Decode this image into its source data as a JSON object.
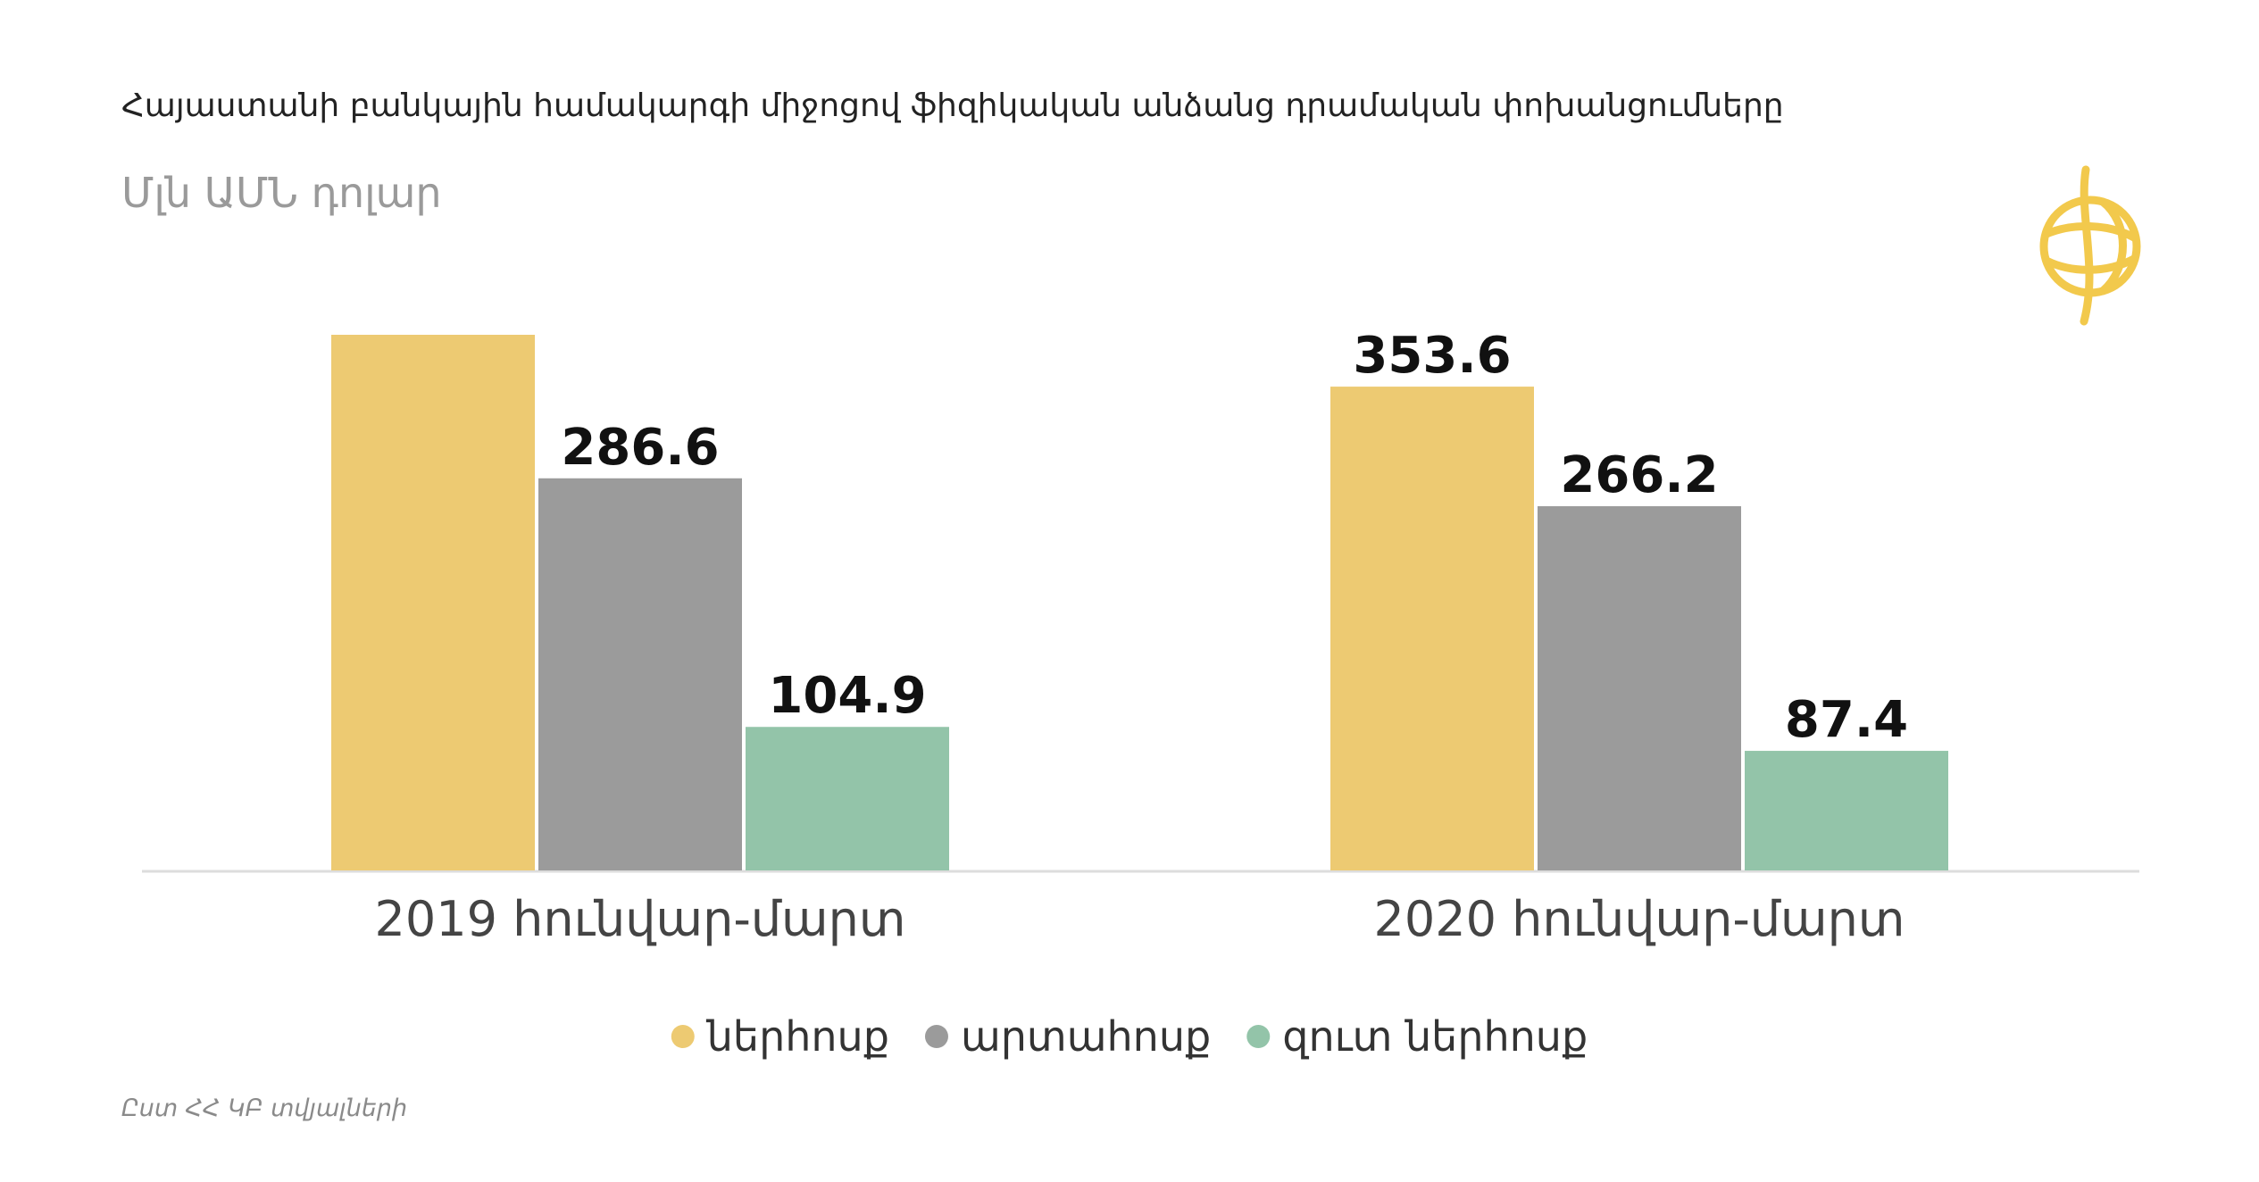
{
  "chart_data": {
    "type": "bar",
    "title": "Հայաստանի բանկային համակարգի միջոցով  ֆիզիկական անձանց  դրամական փոխանցումները",
    "subtitle": "Մլն ԱՄՆ դոլար",
    "source": "Ըստ ՀՀ ԿԲ տվյալների",
    "categories": [
      "2019 հունվար-մարտ",
      "2020 հունվար-մարտ"
    ],
    "series": [
      {
        "name": "ներհոսք",
        "color": "#EDCA72",
        "values": [
          391.5,
          353.6
        ],
        "value_labels": [
          null,
          "353.6"
        ]
      },
      {
        "name": "արտահոսք",
        "color": "#9B9B9B",
        "values": [
          286.6,
          266.2
        ],
        "value_labels": [
          "286.6",
          "266.2"
        ]
      },
      {
        "name": "զուտ ներհոսք",
        "color": "#93C4A9",
        "values": [
          104.9,
          87.4
        ],
        "value_labels": [
          "104.9",
          "87.4"
        ]
      }
    ],
    "legend": "bottom"
  }
}
